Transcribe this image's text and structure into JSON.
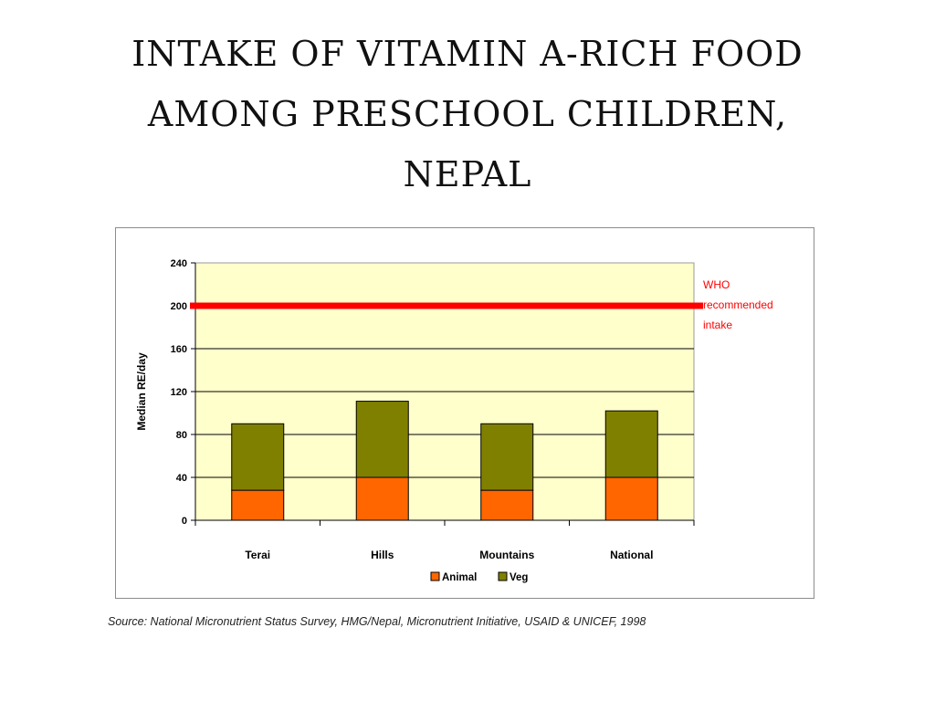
{
  "page": {
    "title_lines": [
      "INTAKE OF VITAMIN A-RICH FOOD",
      "AMONG PRESCHOOL CHILDREN,",
      "NEPAL"
    ],
    "source": "Source: National Micronutrient Status Survey, HMG/Nepal, Micronutrient Initiative, USAID & UNICEF, 1998"
  },
  "chart_data": {
    "type": "bar",
    "stacked": true,
    "categories": [
      "Terai",
      "Hills",
      "Mountains",
      "National"
    ],
    "series": [
      {
        "name": "Animal",
        "values": [
          28,
          40,
          28,
          40
        ],
        "color": "#ff6600"
      },
      {
        "name": "Veg",
        "values": [
          62,
          71,
          62,
          62
        ],
        "color": "#808000"
      }
    ],
    "ylabel": "Median RE/day",
    "xlabel": "",
    "ylim": [
      0,
      240
    ],
    "yticks": [
      0,
      40,
      80,
      120,
      160,
      200,
      240
    ],
    "grid": true,
    "plot_background": "#ffffcc",
    "legend": "bottom",
    "reference_line": {
      "value": 200,
      "label_lines": [
        "WHO",
        "recommended",
        "intake"
      ],
      "color": "#ff0000"
    }
  }
}
